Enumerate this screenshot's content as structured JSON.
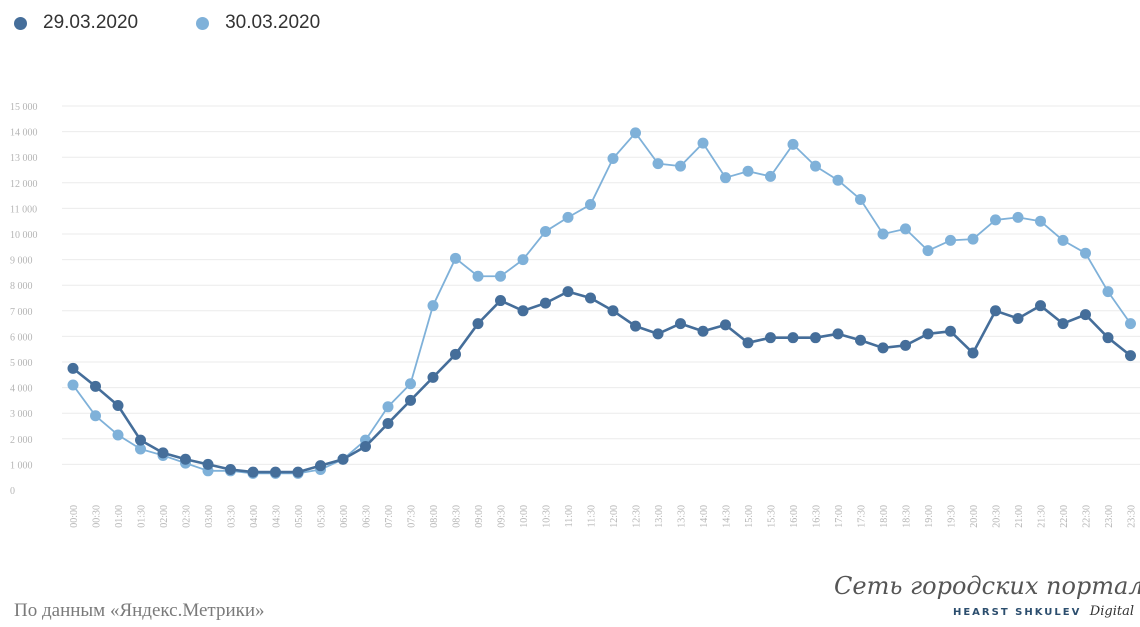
{
  "chart_data": {
    "type": "line",
    "title": "",
    "xlabel": "",
    "ylabel": "",
    "ylim": [
      0,
      15000
    ],
    "y_ticks": [
      "0",
      "1 000",
      "2 000",
      "3 000",
      "4 000",
      "5 000",
      "6 000",
      "7 000",
      "8 000",
      "9 000",
      "10 000",
      "11 000",
      "12 000",
      "13 000",
      "14 000",
      "15 000"
    ],
    "grid": true,
    "legend_position": "top-left",
    "categories": [
      "00:00",
      "00:30",
      "01:00",
      "01:30",
      "02:00",
      "02:30",
      "03:00",
      "03:30",
      "04:00",
      "04:30",
      "05:00",
      "05:30",
      "06:00",
      "06:30",
      "07:00",
      "07:30",
      "08:00",
      "08:30",
      "09:00",
      "09:30",
      "10:00",
      "10:30",
      "11:00",
      "11:30",
      "12:00",
      "12:30",
      "13:00",
      "13:30",
      "14:00",
      "14:30",
      "15:00",
      "15:30",
      "16:00",
      "16:30",
      "17:00",
      "17:30",
      "18:00",
      "18:30",
      "19:00",
      "19:30",
      "20:00",
      "20:30",
      "21:00",
      "21:30",
      "22:00",
      "22:30",
      "23:00",
      "23:30"
    ],
    "series": [
      {
        "name": "29.03.2020",
        "color": "#456e9a",
        "values": [
          4750,
          4050,
          3300,
          1950,
          1450,
          1200,
          1000,
          800,
          700,
          700,
          700,
          950,
          1200,
          1700,
          2600,
          3500,
          4400,
          5300,
          6500,
          7400,
          7000,
          7300,
          7750,
          7500,
          7000,
          6400,
          6100,
          6500,
          6200,
          6450,
          5750,
          5950,
          5950,
          5950,
          6100,
          5850,
          5550,
          5650,
          6100,
          6200,
          5350,
          7000,
          6700,
          7200,
          6500,
          6850,
          5950,
          5250
        ]
      },
      {
        "name": "30.03.2020",
        "color": "#7fb1d9",
        "values": [
          4100,
          2900,
          2150,
          1600,
          1350,
          1050,
          750,
          750,
          650,
          650,
          650,
          800,
          1200,
          1950,
          3250,
          4150,
          7200,
          9050,
          8350,
          8350,
          9000,
          10100,
          10650,
          11150,
          12950,
          13950,
          12750,
          12650,
          13550,
          12200,
          12450,
          12250,
          13500,
          12650,
          12100,
          11350,
          10000,
          10200,
          9350,
          9750,
          9800,
          10550,
          10650,
          10500,
          9750,
          9250,
          7750,
          6500
        ]
      }
    ]
  },
  "footer": {
    "source": "По данным «Яндекс.Метрики»",
    "logo_script": "Сеть городских порталов",
    "logo_brand": "HEARST SHKULEV",
    "logo_digital": "Digital"
  }
}
